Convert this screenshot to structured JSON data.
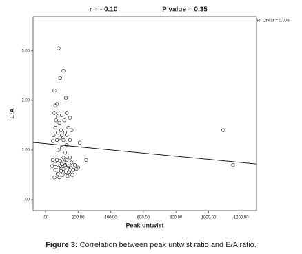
{
  "chart_data": {
    "type": "scatter",
    "title": "r = - 0.10",
    "subtitle": "P value = 0.35",
    "annotation": "R² Linear = 0.009",
    "x_label": "Peak untwist",
    "y_label": "E:A",
    "caption_label": "Figure 3:",
    "caption": "Correlation between peak untwist ratio and E/A ratio.",
    "xlim": [
      -76,
      1294
    ],
    "ylim": [
      -0.22,
      3.69
    ],
    "xticks": [
      {
        "value": 0,
        "label": ".00"
      },
      {
        "value": 200,
        "label": "200.00"
      },
      {
        "value": 400,
        "label": "400.00"
      },
      {
        "value": 600,
        "label": "600.00"
      },
      {
        "value": 800,
        "label": "800.00"
      },
      {
        "value": 1000,
        "label": "1000.00"
      },
      {
        "value": 1200,
        "label": "1200.00"
      }
    ],
    "yticks": [
      {
        "value": 0,
        "label": ".00"
      },
      {
        "value": 1,
        "label": "1.00"
      },
      {
        "value": 2,
        "label": "2.00"
      },
      {
        "value": 3,
        "label": "3.00"
      }
    ],
    "marker_color": "#222222",
    "line_color": "#000000",
    "x": [
      80,
      110,
      90,
      55,
      125,
      70,
      60,
      1090,
      1150,
      250,
      210,
      55,
      75,
      100,
      130,
      150,
      65,
      85,
      115,
      140,
      160,
      60,
      95,
      120,
      75,
      50,
      100,
      130,
      150,
      70,
      90,
      110,
      45,
      130,
      100,
      120,
      80,
      150,
      110,
      70,
      90,
      130,
      160,
      60,
      100,
      120,
      140,
      180,
      40,
      80,
      110,
      150,
      170,
      190,
      60,
      95,
      125,
      145,
      75,
      105,
      135,
      55,
      165,
      90,
      200,
      45,
      115,
      135,
      85,
      155
    ],
    "values": [
      3.05,
      2.6,
      2.45,
      2.2,
      2.05,
      1.93,
      1.9,
      1.4,
      0.7,
      0.8,
      1.15,
      1.75,
      1.68,
      1.7,
      1.75,
      1.65,
      1.6,
      1.55,
      1.6,
      1.45,
      1.4,
      1.45,
      1.4,
      1.35,
      1.35,
      1.3,
      1.3,
      1.3,
      1.2,
      1.2,
      1.25,
      1.2,
      1.18,
      1.1,
      1.05,
      0.95,
      1.0,
      0.85,
      0.85,
      0.8,
      0.78,
      0.8,
      0.75,
      0.72,
      0.72,
      0.7,
      0.68,
      0.7,
      0.68,
      0.65,
      0.62,
      0.6,
      0.6,
      0.62,
      0.6,
      0.58,
      0.55,
      0.55,
      0.52,
      0.5,
      0.48,
      0.45,
      0.5,
      0.68,
      0.65,
      0.8,
      0.75,
      0.65,
      0.45,
      0.65
    ],
    "fit_line": {
      "x": [
        -76,
        1294
      ],
      "values": [
        1.154,
        0.72
      ]
    }
  }
}
